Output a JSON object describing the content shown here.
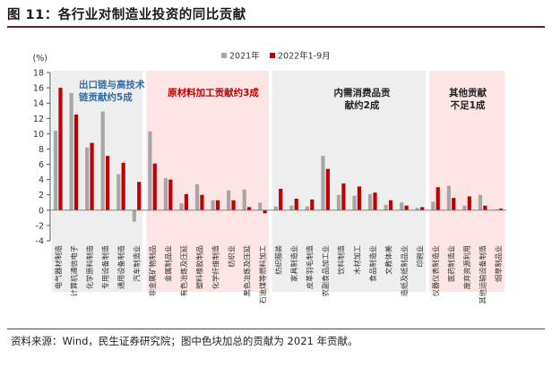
{
  "figure": {
    "title": "图 11：各行业对制造业投资的同比贡献",
    "source_note": "资料来源：Wind，民生证券研究院；图中色块加总的贡献为 2021 年贡献。"
  },
  "colors": {
    "series_2021": "#a6a6a6",
    "series_2022": "#c00000",
    "band_export": "#eeeeee",
    "band_raw": "#fde5e5",
    "band_other": "#fde5e5",
    "title_rule": "#7a1c1c",
    "annotation_blue": "#2e6da4"
  },
  "annotations": [
    {
      "lines": [
        "出口链与高技术",
        "链贡献约5成"
      ],
      "color": "#2e6da4"
    },
    {
      "lines": [
        "原材料加工贡献约3成"
      ],
      "color": "#c00000"
    },
    {
      "lines": [
        "内需消费品贡",
        "献约2成"
      ],
      "color": "#222222"
    },
    {
      "lines": [
        "其他贡献",
        "不足1成"
      ],
      "color": "#222222"
    }
  ],
  "chart_data": {
    "type": "bar",
    "ylabel": "(%)",
    "ylim": [
      -4,
      18
    ],
    "yticks": [
      -4,
      -2,
      0,
      2,
      4,
      6,
      8,
      10,
      12,
      14,
      16,
      18
    ],
    "legend_position": "top-center",
    "categories": [
      "电气器材制造",
      "计算机通信电子",
      "化学原料制造",
      "专用设备制造",
      "通用设备制造",
      "汽车制造业",
      "非金属矿物制品",
      "金属制品业",
      "有色冶炼及压延",
      "塑料橡胶制品",
      "化学纤维制造",
      "纺织业",
      "黑色冶炼及压延",
      "石油煤等燃料加工",
      "纺织服装",
      "家具制造业",
      "皮革羽毛制造",
      "农副食品加工业",
      "饮料制造",
      "木材加工",
      "食品制造业",
      "文教体美",
      "造纸及纸制品业",
      "印刷业",
      "仪器仪表制造业",
      "医药制造业",
      "废弃资源利用",
      "其他运输设备制造",
      "烟草制品业"
    ],
    "series": [
      {
        "name": "2021年",
        "values": [
          10.4,
          15.3,
          8.2,
          12.9,
          4.7,
          -1.5,
          10.3,
          4.2,
          0.9,
          3.4,
          1.3,
          2.6,
          2.7,
          1.0,
          0.5,
          0.6,
          0.5,
          7.1,
          2.0,
          1.9,
          2.1,
          0.7,
          1.0,
          0.3,
          1.1,
          3.2,
          0.6,
          2.0,
          0.1
        ]
      },
      {
        "name": "2022年1-9月",
        "values": [
          16.0,
          12.5,
          8.8,
          7.1,
          6.2,
          3.7,
          6.1,
          4.0,
          2.1,
          2.0,
          1.3,
          1.3,
          0.4,
          -0.4,
          2.8,
          1.5,
          1.4,
          5.4,
          3.5,
          3.1,
          2.3,
          1.3,
          0.6,
          0.4,
          3.0,
          1.6,
          1.8,
          0.6,
          0.2
        ]
      }
    ],
    "groups": [
      {
        "start": 0,
        "end": 5
      },
      {
        "start": 6,
        "end": 13
      },
      {
        "start": 14,
        "end": 23
      },
      {
        "start": 24,
        "end": 28
      }
    ]
  }
}
